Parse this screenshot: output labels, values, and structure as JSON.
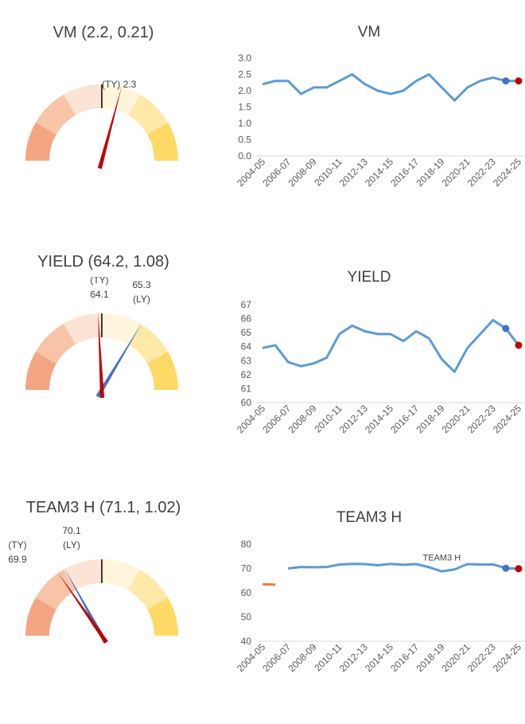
{
  "colors": {
    "line": "#5b9bd5",
    "ty_marker": "#c00000",
    "ly_marker": "#4472c4",
    "orange_line": "#ed7d31",
    "axis_text": "#595959",
    "gridline": "#d9d9d9",
    "gauge_bands": [
      "#f4a582",
      "#f7c4a8",
      "#fbe3d5",
      "#fff5dc",
      "#ffe9a8",
      "#ffd966"
    ]
  },
  "gauges": [
    {
      "title": "VM (2.2, 0.21)",
      "ty_label": "(TY) 2.3",
      "ly_label": "",
      "ty_value": 2.3,
      "ly_value": null,
      "min": 1.6,
      "max": 2.8
    },
    {
      "title": "YIELD (64.2, 1.08)",
      "ty_label_line1": "(TY)",
      "ty_label_line2": "64.1",
      "ly_label_line1": "65.3",
      "ly_label_line2": "(LY)",
      "ty_value": 64.1,
      "ly_value": 65.3,
      "min": 61.0,
      "max": 67.4
    },
    {
      "title": "TEAM3 H (71.1, 1.02)",
      "ty_label_line1": "(TY)",
      "ty_label_line2": "69.9",
      "ly_label_line1": "70.1",
      "ly_label_line2": "(LY)",
      "ty_value": 69.9,
      "ly_value": 70.1,
      "min": 68.0,
      "max": 74.2
    }
  ],
  "chart_data": [
    {
      "type": "line",
      "title": "VM",
      "categories": [
        "2004-05",
        "2005-06",
        "2006-07",
        "2007-08",
        "2008-09",
        "2009-10",
        "2010-11",
        "2011-12",
        "2012-13",
        "2013-14",
        "2014-15",
        "2015-16",
        "2016-17",
        "2017-18",
        "2018-19",
        "2019-20",
        "2020-21",
        "2021-22",
        "2022-23",
        "2023-24",
        "2024-25"
      ],
      "tick_labels": [
        "2004-05",
        "2006-07",
        "2008-09",
        "2010-11",
        "2012-13",
        "2014-15",
        "2016-17",
        "2018-19",
        "2020-21",
        "2022-23",
        "2024-25"
      ],
      "series": [
        {
          "values": [
            2.2,
            2.3,
            2.3,
            1.9,
            2.1,
            2.1,
            2.3,
            2.5,
            2.2,
            2.0,
            1.9,
            2.0,
            2.3,
            2.5,
            2.1,
            1.7,
            2.1,
            2.3,
            2.4,
            2.3,
            2.3
          ]
        }
      ],
      "ly_point": {
        "index": 19,
        "value": 2.3
      },
      "ty_point": {
        "index": 20,
        "value": 2.3
      },
      "ylim": [
        0.0,
        3.0
      ],
      "yticks": [
        "0.0",
        "0.5",
        "1.0",
        "1.5",
        "2.0",
        "2.5",
        "3.0"
      ],
      "grid": false
    },
    {
      "type": "line",
      "title": "YIELD",
      "categories": [
        "2004-05",
        "2005-06",
        "2006-07",
        "2007-08",
        "2008-09",
        "2009-10",
        "2010-11",
        "2011-12",
        "2012-13",
        "2013-14",
        "2014-15",
        "2015-16",
        "2016-17",
        "2017-18",
        "2018-19",
        "2019-20",
        "2020-21",
        "2021-22",
        "2022-23",
        "2023-24",
        "2024-25"
      ],
      "tick_labels": [
        "2004-05",
        "2006-07",
        "2008-09",
        "2010-11",
        "2012-13",
        "2014-15",
        "2016-17",
        "2018-19",
        "2020-21",
        "2022-23",
        "2024-25"
      ],
      "series": [
        {
          "values": [
            63.9,
            64.1,
            62.9,
            62.6,
            62.8,
            63.2,
            64.9,
            65.5,
            65.1,
            64.9,
            64.9,
            64.4,
            65.1,
            64.6,
            63.1,
            62.2,
            63.9,
            64.9,
            65.9,
            65.3,
            64.1
          ]
        }
      ],
      "ly_point": {
        "index": 19,
        "value": 65.3
      },
      "ty_point": {
        "index": 20,
        "value": 64.1
      },
      "ylim": [
        60,
        67
      ],
      "yticks": [
        "60",
        "61",
        "62",
        "63",
        "64",
        "65",
        "66",
        "67"
      ],
      "grid": false
    },
    {
      "type": "line",
      "title": "TEAM3 H",
      "categories": [
        "2004-05",
        "2005-06",
        "2006-07",
        "2007-08",
        "2008-09",
        "2009-10",
        "2010-11",
        "2011-12",
        "2012-13",
        "2013-14",
        "2014-15",
        "2015-16",
        "2016-17",
        "2017-18",
        "2018-19",
        "2019-20",
        "2020-21",
        "2021-22",
        "2022-23",
        "2023-24",
        "2024-25"
      ],
      "tick_labels": [
        "2004-05",
        "2006-07",
        "2008-09",
        "2010-11",
        "2012-13",
        "2014-15",
        "2016-17",
        "2018-19",
        "2020-21",
        "2022-23",
        "2024-25"
      ],
      "series": [
        {
          "name": "TEAM3 H",
          "values": [
            null,
            null,
            70.0,
            70.6,
            70.5,
            70.6,
            71.6,
            71.9,
            71.8,
            71.3,
            71.9,
            71.5,
            71.8,
            70.5,
            68.8,
            69.6,
            71.8,
            71.6,
            71.7,
            70.1,
            69.9
          ]
        },
        {
          "values": [
            63.5,
            63.3,
            null,
            null,
            null,
            null,
            null,
            null,
            null,
            null,
            null,
            null,
            null,
            null,
            null,
            null,
            null,
            null,
            null,
            null,
            null
          ]
        }
      ],
      "series_label": "TEAM3 H",
      "ly_point": {
        "index": 19,
        "value": 70.1
      },
      "ty_point": {
        "index": 20,
        "value": 69.9
      },
      "ylim": [
        40,
        80
      ],
      "yticks": [
        "40",
        "50",
        "60",
        "70",
        "80"
      ],
      "grid": false
    }
  ]
}
